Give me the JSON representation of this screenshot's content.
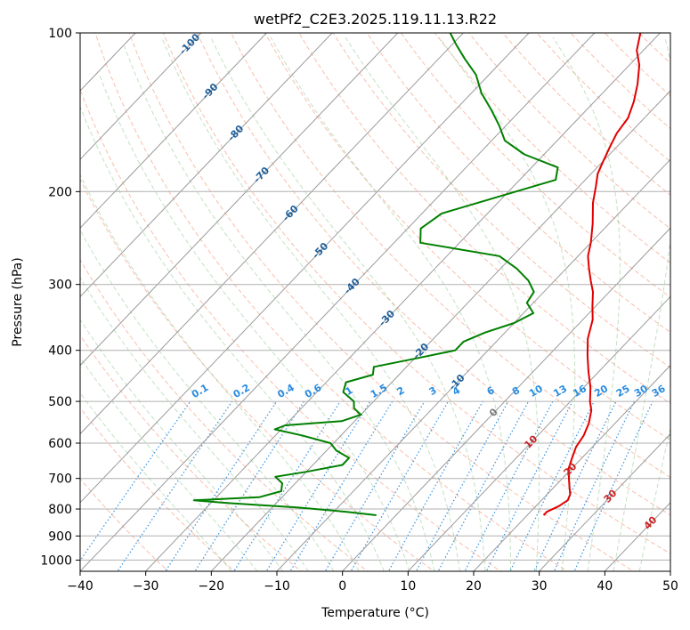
{
  "chart_data": {
    "type": "line",
    "title": "wetPf2_C2E3.2025.119.11.13.R22",
    "xlabel": "Temperature (°C)",
    "ylabel": "Pressure (hPa)",
    "xlim": [
      -40,
      50
    ],
    "ylim": [
      1050,
      100
    ],
    "y_scale": "log",
    "grid": true,
    "x_ticks": [
      -40,
      -30,
      -20,
      -10,
      0,
      10,
      20,
      30,
      40,
      50
    ],
    "x_tick_labels": [
      "−40",
      "−30",
      "−20",
      "−10",
      "0",
      "10",
      "20",
      "30",
      "40",
      "50"
    ],
    "y_ticks": [
      100,
      200,
      300,
      400,
      500,
      600,
      700,
      800,
      900,
      1000
    ],
    "y_tick_labels": [
      "100",
      "200",
      "300",
      "400",
      "500",
      "600",
      "700",
      "800",
      "900",
      "1000"
    ],
    "isotherm_labels": [
      "-100",
      "-90",
      "-80",
      "-70",
      "-60",
      "-50",
      "-40",
      "-30",
      "-20",
      "-10",
      "0",
      "10",
      "20",
      "30",
      "40"
    ],
    "isotherm_label_values": [
      -100,
      -90,
      -80,
      -70,
      -60,
      -50,
      -40,
      -30,
      -20,
      -10,
      0,
      10,
      20,
      30,
      40
    ],
    "mixing_ratio_labels": [
      "0.1",
      "0.2",
      "0.4",
      "0.6",
      "1",
      "1.5",
      "2",
      "3",
      "4",
      "6",
      "8",
      "10",
      "13",
      "16",
      "20",
      "25",
      "30",
      "36"
    ],
    "mixing_ratio_values": [
      0.1,
      0.2,
      0.4,
      0.6,
      1,
      1.5,
      2,
      3,
      4,
      6,
      8,
      10,
      13,
      16,
      20,
      25,
      30,
      36
    ],
    "series": [
      {
        "color": "#e00000",
        "pressure": [
          822,
          810,
          790,
          770,
          750,
          730,
          700,
          670,
          640,
          610,
          580,
          550,
          520,
          500,
          470,
          440,
          410,
          380,
          350,
          330,
          310,
          295,
          280,
          265,
          250,
          230,
          210,
          195,
          185,
          175,
          165,
          155,
          145,
          135,
          125,
          115,
          108,
          100
        ],
        "values": [
          22.5,
          22.5,
          23.5,
          24.0,
          23.5,
          22.5,
          21.0,
          19.5,
          18.5,
          17.5,
          17.0,
          16.0,
          14.5,
          13.0,
          11.0,
          8.5,
          6.0,
          3.5,
          1.5,
          -0.5,
          -2.5,
          -4.5,
          -6.5,
          -8.5,
          -10.0,
          -12.5,
          -15.5,
          -17.5,
          -19.0,
          -20.0,
          -21.0,
          -22.0,
          -22.5,
          -24.0,
          -26.0,
          -28.5,
          -31.0,
          -33.0
        ]
      },
      {
        "color": "#008000",
        "pressure": [
          822,
          810,
          795,
          780,
          770,
          760,
          740,
          715,
          695,
          680,
          660,
          640,
          620,
          600,
          580,
          565,
          555,
          545,
          530,
          515,
          500,
          480,
          460,
          445,
          430,
          415,
          400,
          385,
          370,
          355,
          340,
          325,
          310,
          295,
          280,
          265,
          250,
          235,
          220,
          205,
          190,
          180,
          170,
          160,
          150,
          140,
          130,
          120,
          112,
          105,
          100
        ],
        "values": [
          -3.0,
          -8.0,
          -16.0,
          -27.0,
          -33.0,
          -23.5,
          -21.0,
          -22.0,
          -24.0,
          -20.0,
          -15.5,
          -15.5,
          -18.5,
          -20.5,
          -26.0,
          -31.0,
          -30.0,
          -22.0,
          -20.0,
          -22.0,
          -23.0,
          -26.0,
          -27.0,
          -24.0,
          -25.0,
          -20.0,
          -15.0,
          -15.0,
          -13.0,
          -10.0,
          -8.5,
          -11.0,
          -11.5,
          -14.0,
          -17.5,
          -22.0,
          -36.0,
          -38.0,
          -37.0,
          -31.0,
          -24.5,
          -26.0,
          -33.0,
          -38.0,
          -41.0,
          -44.5,
          -48.5,
          -52.0,
          -56.0,
          -59.5,
          -62.0
        ]
      }
    ]
  }
}
